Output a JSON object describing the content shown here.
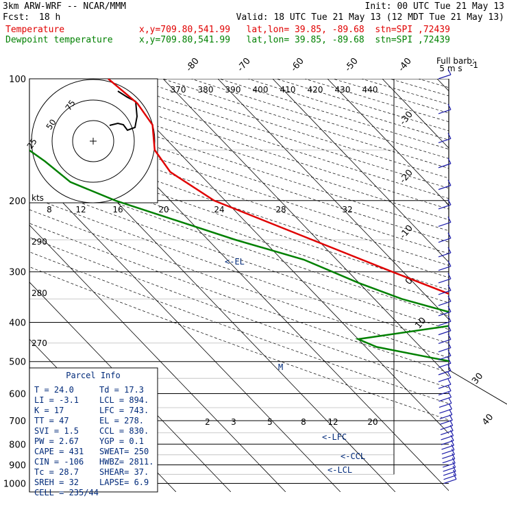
{
  "header": {
    "line1_left": "3km ARW-WRF -- NCAR/MMM",
    "line1_right": "Init: 00 UTC Tue 21 May 13",
    "fcst_label": "Fcst:",
    "fcst_value": "18 h",
    "valid": "Valid: 18 UTC Tue 21 May 13 (12 MDT Tue 21 May 13)",
    "temp_label": "Temperature",
    "dew_label": "Dewpoint temperature",
    "loc_info": "x,y=709.80,541.99   lat,lon= 39.85, -89.68  stn=SPI ,72439"
  },
  "colors": {
    "temperature": "#e00000",
    "dewpoint": "#008000",
    "parcel": "#002a7a",
    "barbs": "#1a1aa8"
  },
  "chart_data": {
    "type": "skew-t",
    "pressure_levels": [
      "100",
      "200",
      "300",
      "400",
      "500",
      "600",
      "700",
      "800",
      "900",
      "1000"
    ],
    "temperature_labels": [
      "-80",
      "-70",
      "-60",
      "-50",
      "-40",
      "-30",
      "-20",
      "-10",
      "0",
      "10",
      "20",
      "30",
      "40"
    ],
    "theta_labels": [
      "370",
      "380",
      "390",
      "400",
      "410",
      "420",
      "430",
      "440"
    ],
    "theta_e_labels": [
      "290",
      "280",
      "270"
    ],
    "mixing_ratio_labels": [
      "2",
      "3",
      "5",
      "8",
      "12",
      "20"
    ],
    "hodo_speed_labels": [
      "8",
      "12",
      "16",
      "20",
      "24",
      "28",
      "32"
    ],
    "hodo_ring_labels": [
      "75",
      "50",
      "25"
    ],
    "hodo_units": "kts",
    "full_barb_label": "Full barb:",
    "full_barb_value": "5 m s",
    "full_barb_exp": "-1",
    "temperature": [
      [
        1000,
        28.7
      ],
      [
        950,
        25.5
      ],
      [
        900,
        22.8
      ],
      [
        850,
        18.8
      ],
      [
        800,
        15.0
      ],
      [
        750,
        11.0
      ],
      [
        700,
        7.0
      ],
      [
        650,
        3.0
      ],
      [
        600,
        -1.0
      ],
      [
        550,
        -4.0
      ],
      [
        500,
        -7.0
      ],
      [
        450,
        -10.0
      ],
      [
        400,
        -17.0
      ],
      [
        350,
        -24.0
      ],
      [
        300,
        -32.0
      ],
      [
        250,
        -41.0
      ],
      [
        200,
        -52.0
      ],
      [
        170,
        -55.0
      ],
      [
        150,
        -54.0
      ],
      [
        130,
        -50.0
      ],
      [
        115,
        -49.0
      ],
      [
        100,
        -50.0
      ]
    ],
    "dewpoint": [
      [
        1000,
        17.3
      ],
      [
        950,
        17.0
      ],
      [
        900,
        16.0
      ],
      [
        850,
        7.0
      ],
      [
        800,
        -2.0
      ],
      [
        700,
        -12.0
      ],
      [
        650,
        -11.0
      ],
      [
        600,
        -12.0
      ],
      [
        550,
        -20.0
      ],
      [
        500,
        -37.0
      ],
      [
        460,
        -48.0
      ],
      [
        440,
        -50.0
      ],
      [
        400,
        -26.0
      ],
      [
        380,
        -28.0
      ],
      [
        350,
        -35.0
      ],
      [
        320,
        -40.0
      ],
      [
        280,
        -46.0
      ],
      [
        250,
        -55.0
      ],
      [
        200,
        -70.0
      ],
      [
        180,
        -75.0
      ],
      [
        160,
        -76.0
      ],
      [
        130,
        -79.0
      ],
      [
        100,
        -80.0
      ]
    ],
    "annotations": [
      "<-EL",
      "<-LFC",
      "<-CCL",
      "<-LCL",
      "M"
    ],
    "wind_barbs": 42,
    "hodograph": [
      [
        -5,
        20
      ],
      [
        -3,
        18
      ],
      [
        0,
        15
      ],
      [
        2,
        10
      ],
      [
        3,
        7
      ],
      [
        4,
        5
      ],
      [
        5,
        2
      ],
      [
        8,
        0
      ],
      [
        10,
        -3
      ]
    ]
  },
  "parcel_info": {
    "title": "Parcel Info",
    "rows": [
      [
        "T  =    24.0",
        "Td  =   17.3"
      ],
      [
        "LI =    -3.1",
        "LCL =   894."
      ],
      [
        "K  =      17",
        "LFC =   743."
      ],
      [
        "TT =      47",
        "EL  =   278."
      ],
      [
        "SVI =    1.5",
        "CCL =   830."
      ],
      [
        "PW =    2.67",
        "YGP =    0.1"
      ],
      [
        "CAPE =   431",
        "SWEAT=   250"
      ],
      [
        "CIN =   -106",
        "HWBZ= 2811."
      ],
      [
        "Tc =    28.7",
        "SHEAR=   37."
      ],
      [
        "SREH =    32",
        "LAPSE=   6.9"
      ],
      [
        "CELL = 235/44",
        ""
      ]
    ]
  }
}
